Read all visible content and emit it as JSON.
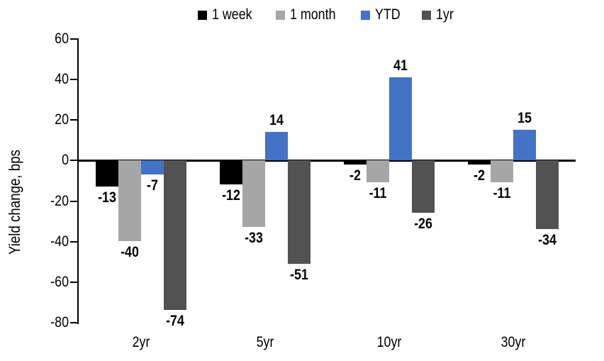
{
  "chart_data": {
    "type": "bar",
    "ylabel": "Yield change, bps",
    "categories": [
      "2yr",
      "5yr",
      "10yr",
      "30yr"
    ],
    "series": [
      {
        "name": "1 week",
        "color": "#000000",
        "values": [
          -13,
          -12,
          -2,
          -2
        ]
      },
      {
        "name": "1 month",
        "color": "#A6A6A6",
        "values": [
          -40,
          -33,
          -11,
          -11
        ]
      },
      {
        "name": "YTD",
        "color": "#4472C4",
        "values": [
          -7,
          14,
          41,
          15
        ]
      },
      {
        "name": "1yr",
        "color": "#525252",
        "values": [
          -74,
          -51,
          -26,
          -34
        ]
      }
    ],
    "ylim": [
      -80,
      60
    ],
    "yticks": [
      60,
      40,
      20,
      0,
      -20,
      -40,
      -60,
      -80
    ],
    "legend_position": "top",
    "grid": false,
    "data_labels": "outside-end",
    "axis_color": "#000000",
    "background_color": "#FFFFFF"
  }
}
